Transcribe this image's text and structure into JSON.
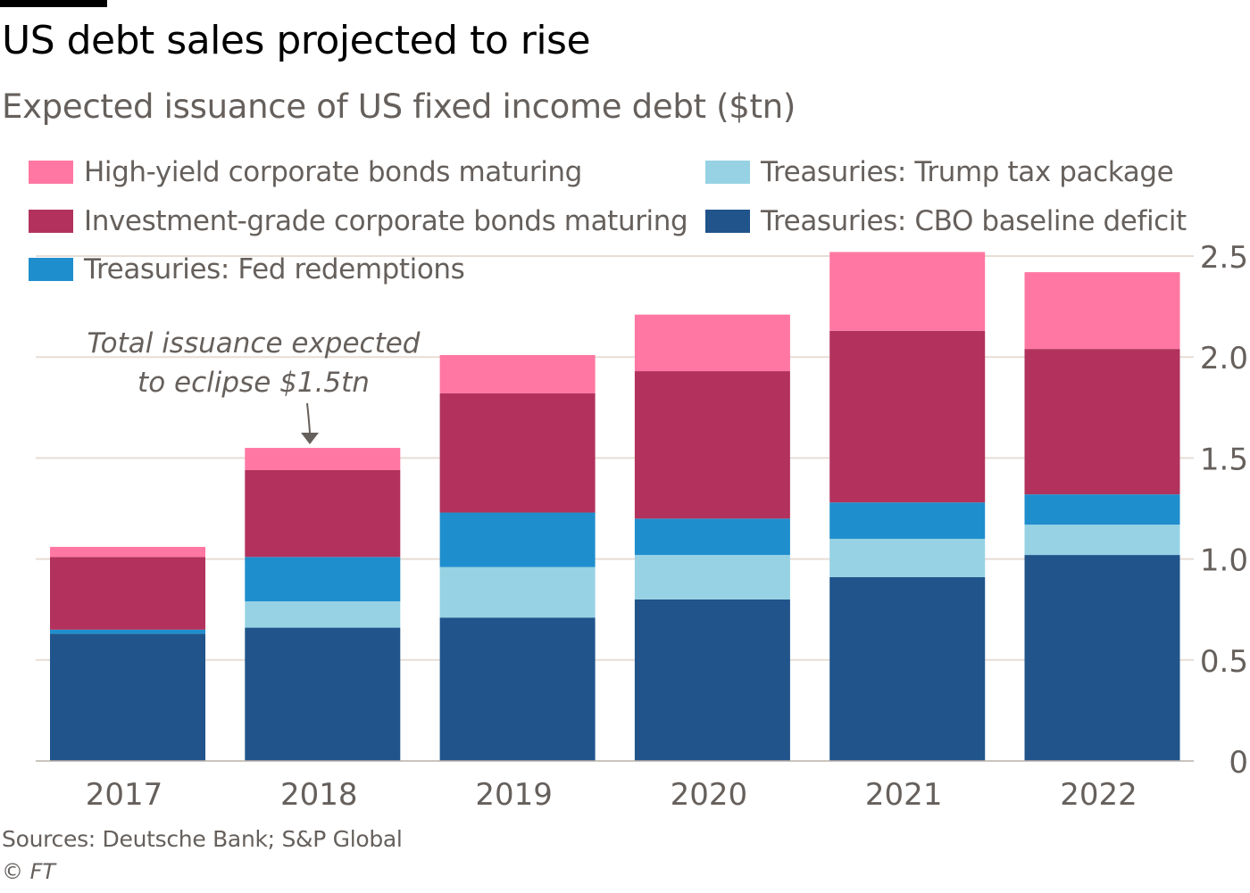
{
  "header": {
    "title": "US debt sales projected to rise",
    "subtitle": "Expected issuance of US fixed income debt ($tn)"
  },
  "footer": {
    "source": "Sources: Deutsche Bank; S&P Global",
    "copyright": "© FT"
  },
  "chart_data": {
    "type": "bar",
    "stacked": true,
    "title": "US debt sales projected to rise",
    "subtitle": "Expected issuance of US fixed income debt ($tn)",
    "xlabel": "",
    "ylabel": "",
    "ylim": [
      0,
      2.5
    ],
    "yticks": [
      0,
      0.5,
      1.0,
      1.5,
      2.0,
      2.5
    ],
    "ytick_labels": [
      "0",
      "0.5",
      "1.0",
      "1.5",
      "2.0",
      "2.5"
    ],
    "grid": true,
    "y_axis_position": "right",
    "legend_position": "top",
    "categories": [
      "2017",
      "2018",
      "2019",
      "2020",
      "2021",
      "2022"
    ],
    "series": [
      {
        "name": "Treasuries: CBO baseline deficit",
        "color": "#20548b",
        "values": [
          0.63,
          0.66,
          0.71,
          0.8,
          0.91,
          1.02
        ]
      },
      {
        "name": "Treasuries: Trump tax package",
        "color": "#96d2e4",
        "values": [
          0.0,
          0.13,
          0.25,
          0.22,
          0.19,
          0.15
        ]
      },
      {
        "name": "Treasuries: Fed redemptions",
        "color": "#1f8ecd",
        "values": [
          0.02,
          0.22,
          0.27,
          0.18,
          0.18,
          0.15
        ]
      },
      {
        "name": "Investment-grade corporate bonds maturing",
        "color": "#b2325d",
        "values": [
          0.36,
          0.43,
          0.59,
          0.73,
          0.85,
          0.72
        ]
      },
      {
        "name": "High-yield corporate bonds maturing",
        "color": "#ff77a2",
        "values": [
          0.05,
          0.11,
          0.19,
          0.28,
          0.39,
          0.38
        ]
      }
    ],
    "legend": [
      {
        "label": "High-yield corporate bonds maturing",
        "color": "#ff77a2"
      },
      {
        "label": "Investment-grade corporate bonds maturing",
        "color": "#b2325d"
      },
      {
        "label": "Treasuries: Fed redemptions",
        "color": "#1f8ecd"
      },
      {
        "label": "Treasuries: Trump tax package",
        "color": "#96d2e4"
      },
      {
        "label": "Treasuries: CBO baseline deficit",
        "color": "#20548b"
      }
    ],
    "annotation": {
      "lines": [
        "Total issuance expected",
        "to eclipse $1.5tn"
      ],
      "target_category": "2018"
    }
  }
}
